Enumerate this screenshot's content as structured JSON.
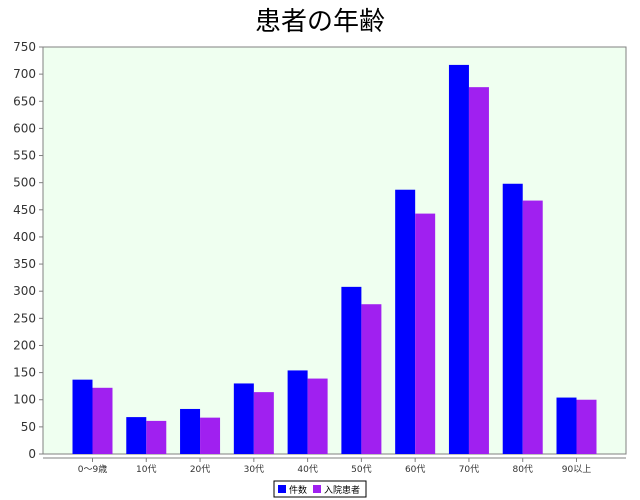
{
  "chart_data": {
    "type": "bar",
    "title": "患者の年齢",
    "categories": [
      "0〜9歳",
      "10代",
      "20代",
      "30代",
      "40代",
      "50代",
      "60代",
      "70代",
      "80代",
      "90以上"
    ],
    "series": [
      {
        "name": "件数",
        "values": [
          137,
          68,
          83,
          130,
          154,
          308,
          487,
          717,
          498,
          104
        ]
      },
      {
        "name": "入院患者",
        "values": [
          122,
          61,
          67,
          114,
          139,
          276,
          443,
          676,
          467,
          100
        ]
      }
    ],
    "ylim": [
      0,
      750
    ],
    "yticks": [
      0,
      50,
      100,
      150,
      200,
      250,
      300,
      350,
      400,
      450,
      500,
      550,
      600,
      650,
      700,
      750
    ],
    "xlabel": "",
    "ylabel": "",
    "grid": false,
    "legend_position": "bottom",
    "colors": {
      "series1": "#0000ff",
      "series2": "#a020f0",
      "plot_bg": "#effff0"
    }
  }
}
